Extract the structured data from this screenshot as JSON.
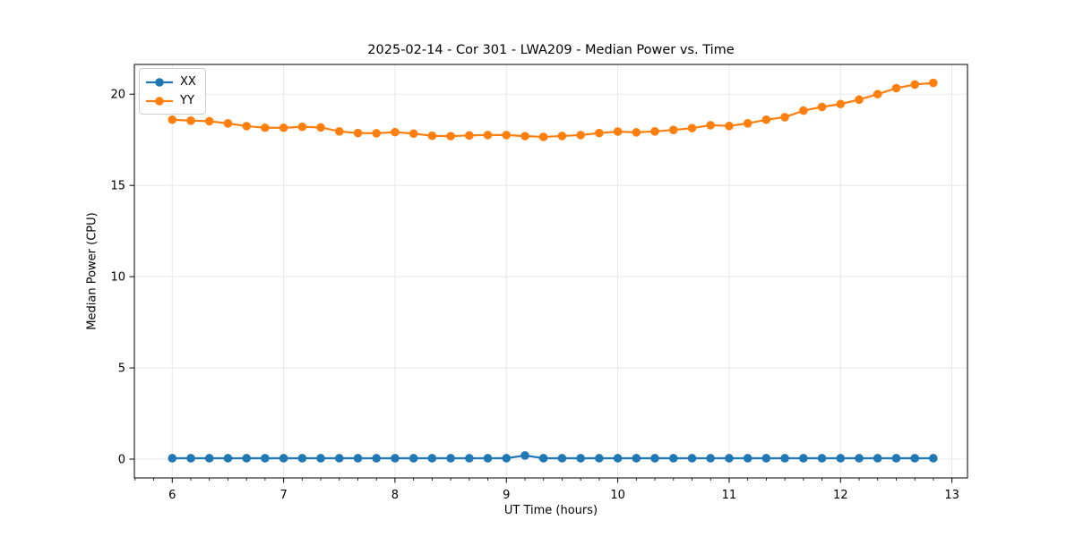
{
  "chart_data": {
    "type": "line",
    "title": "2025-02-14 - Cor 301 - LWA209 - Median Power vs. Time",
    "xlabel": "UT Time (hours)",
    "ylabel": "Median Power (CPU)",
    "xlim": [
      5.66,
      13.14
    ],
    "ylim": [
      -1.03,
      21.63
    ],
    "xticks": [
      6,
      7,
      8,
      9,
      10,
      11,
      12,
      13
    ],
    "yticks": [
      0,
      5,
      10,
      15,
      20
    ],
    "x_minor_tick_step": 0.16667,
    "grid": true,
    "grid_color": "#e8e8e8",
    "legend_position": "upper-left",
    "x": [
      6.0,
      6.167,
      6.333,
      6.5,
      6.667,
      6.833,
      7.0,
      7.167,
      7.333,
      7.5,
      7.667,
      7.833,
      8.0,
      8.167,
      8.333,
      8.5,
      8.667,
      8.833,
      9.0,
      9.167,
      9.333,
      9.5,
      9.667,
      9.833,
      10.0,
      10.167,
      10.333,
      10.5,
      10.667,
      10.833,
      11.0,
      11.167,
      11.333,
      11.5,
      11.667,
      11.833,
      12.0,
      12.167,
      12.333,
      12.5,
      12.667,
      12.833
    ],
    "series": [
      {
        "name": "XX",
        "color": "#1f77b4",
        "values": [
          0.05,
          0.05,
          0.05,
          0.05,
          0.05,
          0.05,
          0.05,
          0.05,
          0.05,
          0.05,
          0.05,
          0.05,
          0.05,
          0.05,
          0.05,
          0.05,
          0.05,
          0.05,
          0.05,
          0.2,
          0.05,
          0.05,
          0.05,
          0.05,
          0.05,
          0.05,
          0.05,
          0.05,
          0.05,
          0.05,
          0.05,
          0.05,
          0.05,
          0.05,
          0.05,
          0.05,
          0.05,
          0.05,
          0.05,
          0.05,
          0.05,
          0.05
        ]
      },
      {
        "name": "YY",
        "color": "#ff7f0e",
        "values": [
          18.6,
          18.55,
          18.52,
          18.4,
          18.25,
          18.16,
          18.16,
          18.21,
          18.18,
          17.96,
          17.87,
          17.86,
          17.92,
          17.84,
          17.72,
          17.7,
          17.74,
          17.76,
          17.76,
          17.7,
          17.66,
          17.71,
          17.76,
          17.87,
          17.95,
          17.91,
          17.96,
          18.04,
          18.14,
          18.3,
          18.26,
          18.4,
          18.6,
          18.74,
          19.1,
          19.3,
          19.46,
          19.7,
          20.0,
          20.33,
          20.53,
          20.62
        ]
      }
    ]
  }
}
